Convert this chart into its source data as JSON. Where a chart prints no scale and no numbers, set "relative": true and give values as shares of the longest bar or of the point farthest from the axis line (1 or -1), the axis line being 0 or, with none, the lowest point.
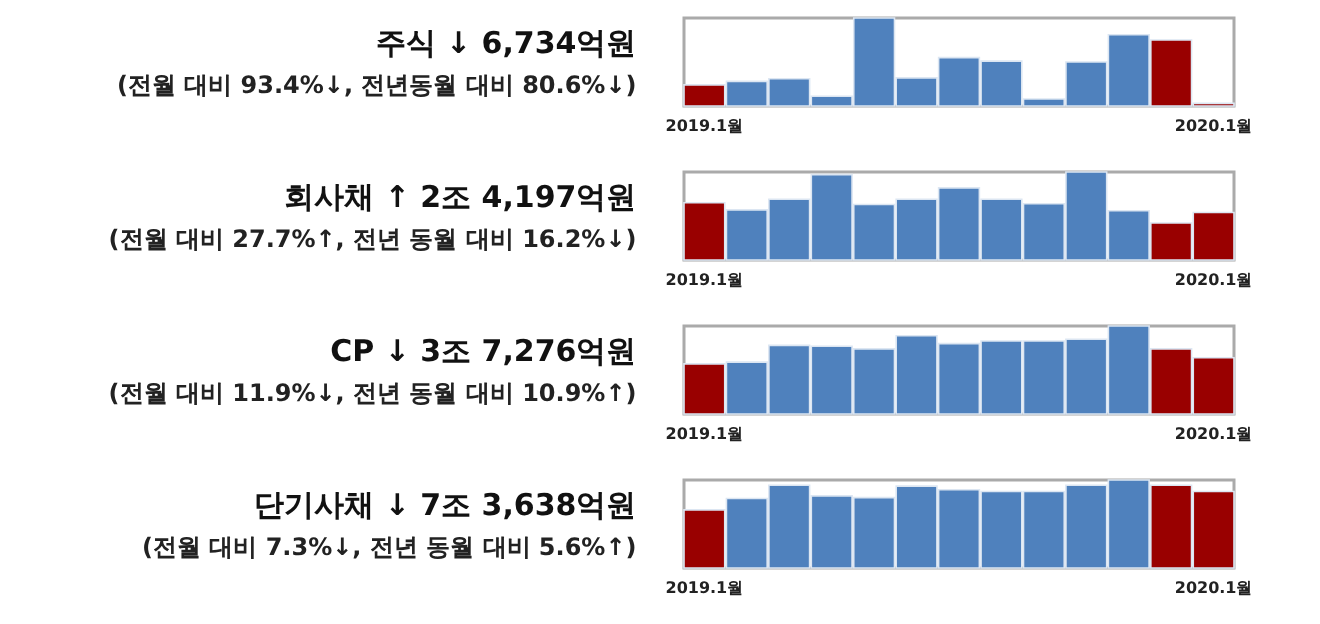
{
  "chart_data": [
    {
      "type": "bar",
      "title": "주식 ↓ 6,734억원",
      "subtitle": "(전월 대비 93.4%↓, 전년동월 대비 80.6%↓)",
      "relative": true,
      "categories": [
        "2019.1월",
        null,
        null,
        null,
        null,
        null,
        null,
        null,
        null,
        null,
        null,
        null,
        "2020.1월"
      ],
      "values": [
        0.24,
        0.28,
        0.31,
        0.11,
        1,
        0.32,
        0.55,
        0.51,
        0.08,
        0.5,
        0.81,
        0.75,
        0.03
      ],
      "colors": [
        "#990000",
        "#4f81bd",
        "#4f81bd",
        "#4f81bd",
        "#4f81bd",
        "#4f81bd",
        "#4f81bd",
        "#4f81bd",
        "#4f81bd",
        "#4f81bd",
        "#4f81bd",
        "#990000",
        "#990000"
      ]
    },
    {
      "type": "bar",
      "title": "회사채 ↑ 2조 4,197억원",
      "subtitle": "(전월 대비 27.7%↑, 전년 동월 대비 16.2%↓)",
      "relative": true,
      "categories": [
        "2019.1월",
        null,
        null,
        null,
        null,
        null,
        null,
        null,
        null,
        null,
        null,
        null,
        "2020.1월"
      ],
      "values": [
        0.65,
        0.57,
        0.69,
        0.97,
        0.63,
        0.69,
        0.82,
        0.69,
        0.64,
        1,
        0.56,
        0.42,
        0.54
      ],
      "colors": [
        "#990000",
        "#4f81bd",
        "#4f81bd",
        "#4f81bd",
        "#4f81bd",
        "#4f81bd",
        "#4f81bd",
        "#4f81bd",
        "#4f81bd",
        "#4f81bd",
        "#4f81bd",
        "#990000",
        "#990000"
      ]
    },
    {
      "type": "bar",
      "title": "CP ↓ 3조 7,276억원",
      "subtitle": "(전월 대비 11.9%↓, 전년 동월 대비 10.9%↑)",
      "relative": true,
      "categories": [
        "2019.1월",
        null,
        null,
        null,
        null,
        null,
        null,
        null,
        null,
        null,
        null,
        null,
        "2020.1월"
      ],
      "values": [
        0.57,
        0.59,
        0.78,
        0.77,
        0.74,
        0.89,
        0.8,
        0.83,
        0.83,
        0.85,
        1,
        0.74,
        0.64
      ],
      "colors": [
        "#990000",
        "#4f81bd",
        "#4f81bd",
        "#4f81bd",
        "#4f81bd",
        "#4f81bd",
        "#4f81bd",
        "#4f81bd",
        "#4f81bd",
        "#4f81bd",
        "#4f81bd",
        "#990000",
        "#990000"
      ]
    },
    {
      "type": "bar",
      "title": "단기사채 ↓ 7조 3,638억원",
      "subtitle": "(전월 대비 7.3%↓, 전년 동월 대비 5.6%↑)",
      "relative": true,
      "categories": [
        "2019.1월",
        null,
        null,
        null,
        null,
        null,
        null,
        null,
        null,
        null,
        null,
        null,
        "2020.1월"
      ],
      "values": [
        0.66,
        0.79,
        0.94,
        0.82,
        0.8,
        0.93,
        0.89,
        0.87,
        0.87,
        0.94,
        1,
        0.94,
        0.87
      ],
      "colors": [
        "#990000",
        "#4f81bd",
        "#4f81bd",
        "#4f81bd",
        "#4f81bd",
        "#4f81bd",
        "#4f81bd",
        "#4f81bd",
        "#4f81bd",
        "#4f81bd",
        "#4f81bd",
        "#990000",
        "#990000"
      ]
    }
  ]
}
